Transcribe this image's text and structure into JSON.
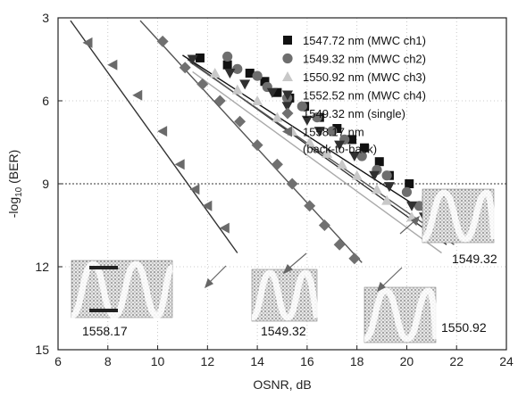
{
  "chart_data": {
    "type": "scatter",
    "title": "",
    "xlabel": "OSNR, dB",
    "ylabel_parts": {
      "pre": "-log",
      "sub": "10",
      "post": " (BER)"
    },
    "xlim": [
      6,
      24
    ],
    "ylim": [
      3,
      15
    ],
    "y_inverted": true,
    "xticks": [
      "6",
      "8",
      "10",
      "12",
      "14",
      "16",
      "18",
      "20",
      "22",
      "24"
    ],
    "yticks": [
      "3",
      "6",
      "9",
      "12",
      "15"
    ],
    "grid": "dotted",
    "threshold_line_y": 9,
    "legend_position": "top-right",
    "series": [
      {
        "name": "1547.72 nm (MWC ch1)",
        "marker": "square",
        "color": "#111111",
        "points": [
          [
            11.7,
            4.45
          ],
          [
            12.8,
            4.7
          ],
          [
            13.7,
            5.0
          ],
          [
            14.3,
            5.3
          ],
          [
            14.8,
            5.7
          ],
          [
            15.3,
            5.9
          ],
          [
            15.9,
            6.2
          ],
          [
            16.5,
            6.6
          ],
          [
            17.2,
            7.0
          ],
          [
            17.8,
            7.4
          ],
          [
            18.3,
            7.7
          ],
          [
            18.9,
            8.2
          ],
          [
            19.3,
            8.7
          ],
          [
            20.1,
            9.0
          ],
          [
            20.8,
            9.6
          ]
        ]
      },
      {
        "name": "1549.32 nm (MWC ch2)",
        "marker": "circle",
        "color": "#6e6e6e",
        "points": [
          [
            12.8,
            4.4
          ],
          [
            13.2,
            4.85
          ],
          [
            14.0,
            5.1
          ],
          [
            14.4,
            5.5
          ],
          [
            15.2,
            5.9
          ],
          [
            15.8,
            6.2
          ],
          [
            16.4,
            6.6
          ],
          [
            17.0,
            7.1
          ],
          [
            17.5,
            7.4
          ],
          [
            18.2,
            8.0
          ],
          [
            18.8,
            8.5
          ],
          [
            19.2,
            8.7
          ],
          [
            20.0,
            9.3
          ],
          [
            20.5,
            9.8
          ],
          [
            21.1,
            10.3
          ]
        ]
      },
      {
        "name": "1550.92 nm (MWC ch3)",
        "marker": "triangle-up",
        "color": "#c8c8c8",
        "points": [
          [
            12.3,
            5.0
          ],
          [
            13.2,
            5.6
          ],
          [
            14.0,
            6.0
          ],
          [
            14.8,
            6.6
          ],
          [
            15.4,
            7.1
          ],
          [
            16.1,
            7.5
          ],
          [
            16.8,
            7.9
          ],
          [
            17.4,
            8.3
          ],
          [
            18.0,
            8.7
          ],
          [
            18.8,
            9.2
          ],
          [
            19.2,
            9.6
          ],
          [
            20.2,
            10.2
          ]
        ]
      },
      {
        "name": "1552.52 nm (MWC ch4)",
        "marker": "triangle-down",
        "color": "#303030",
        "points": [
          [
            11.4,
            4.5
          ],
          [
            12.9,
            5.0
          ],
          [
            13.5,
            5.4
          ],
          [
            14.6,
            5.7
          ],
          [
            15.2,
            6.2
          ],
          [
            16.0,
            6.7
          ],
          [
            16.5,
            7.1
          ],
          [
            17.3,
            7.6
          ],
          [
            17.9,
            8.0
          ],
          [
            18.7,
            8.7
          ],
          [
            19.3,
            9.1
          ],
          [
            20.2,
            9.8
          ],
          [
            20.7,
            10.2
          ]
        ]
      },
      {
        "name": "1549.32 nm (single)",
        "marker": "diamond",
        "color": "#707070",
        "points": [
          [
            10.2,
            3.85
          ],
          [
            11.1,
            4.8
          ],
          [
            11.8,
            5.4
          ],
          [
            12.5,
            6.0
          ],
          [
            13.3,
            6.75
          ],
          [
            14.0,
            7.6
          ],
          [
            14.8,
            8.3
          ],
          [
            15.4,
            9.0
          ],
          [
            16.1,
            9.8
          ],
          [
            16.7,
            10.5
          ],
          [
            17.3,
            11.2
          ],
          [
            17.9,
            11.7
          ]
        ]
      },
      {
        "name": "1558.17 nm",
        "name_line2": "(back-to-back)",
        "marker": "triangle-left",
        "color": "#6a6a6a",
        "points": [
          [
            7.2,
            3.9
          ],
          [
            8.2,
            4.7
          ],
          [
            9.2,
            5.8
          ],
          [
            10.2,
            7.1
          ],
          [
            10.9,
            8.3
          ],
          [
            11.5,
            9.2
          ],
          [
            12.0,
            9.8
          ],
          [
            12.7,
            10.6
          ]
        ]
      }
    ],
    "fit_lines": [
      {
        "color": "#333333",
        "from": [
          6.5,
          3.1
        ],
        "to": [
          13.2,
          11.5
        ]
      },
      {
        "color": "#555555",
        "from": [
          9.3,
          3.1
        ],
        "to": [
          18.2,
          11.85
        ]
      },
      {
        "color": "#111111",
        "from": [
          11.0,
          4.35
        ],
        "to": [
          22.0,
          10.75
        ]
      },
      {
        "color": "#333333",
        "from": [
          11.2,
          4.5
        ],
        "to": [
          21.6,
          11.2
        ]
      },
      {
        "color": "#555555",
        "from": [
          11.3,
          4.6
        ],
        "to": [
          21.9,
          11.2
        ]
      },
      {
        "color": "#aaaaaa",
        "from": [
          11.4,
          4.95
        ],
        "to": [
          21.4,
          11.5
        ]
      }
    ],
    "eye_labels": [
      "1558.17",
      "1549.32",
      "1550.92",
      "1549.32"
    ]
  }
}
